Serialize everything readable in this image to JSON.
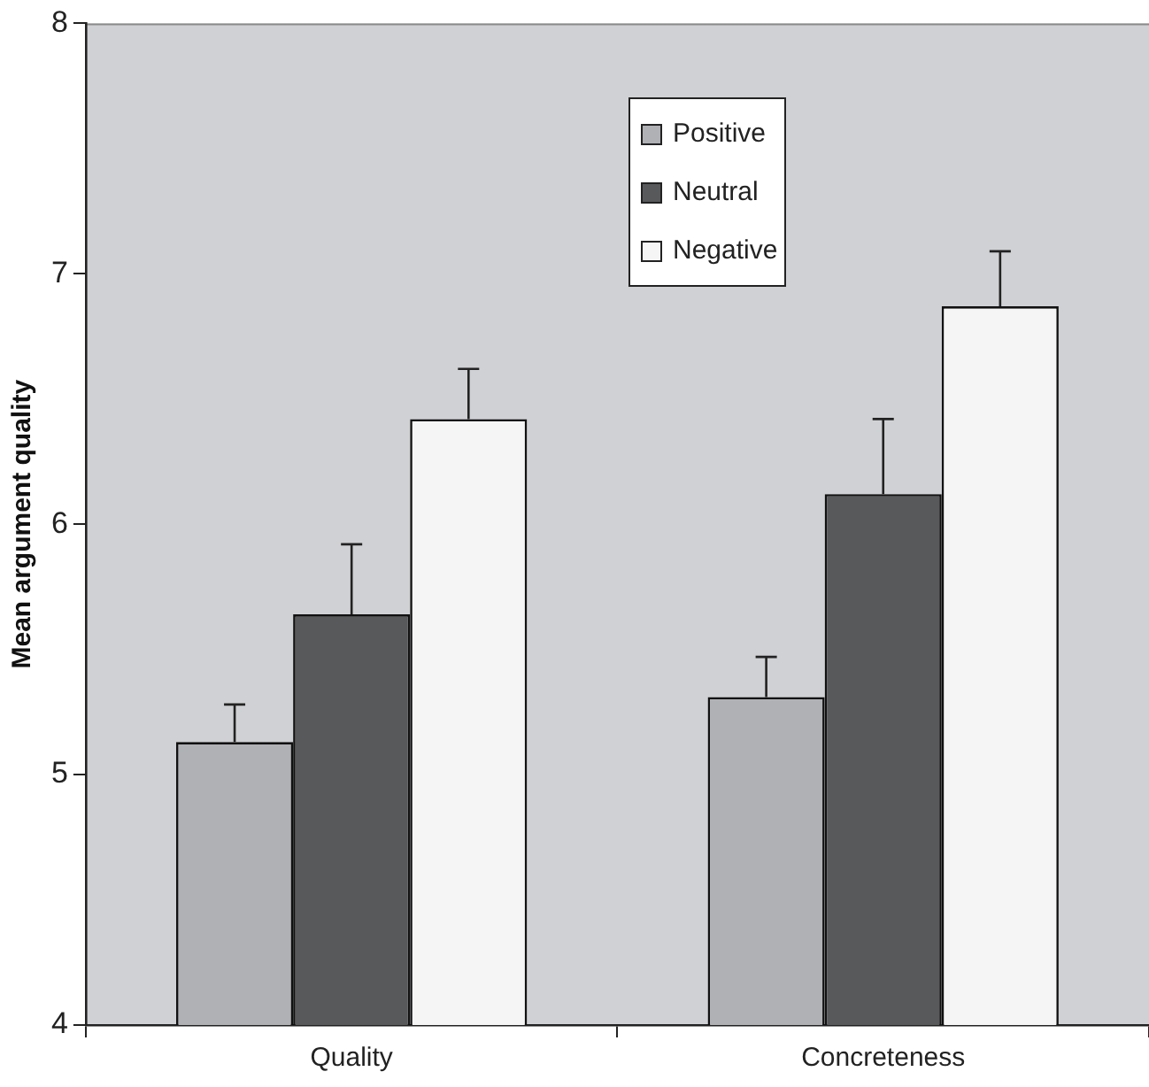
{
  "chart_data": {
    "type": "bar",
    "ylabel": "Mean argument quality",
    "categories": [
      "Quality",
      "Concreteness"
    ],
    "series": [
      {
        "name": "Positive",
        "color": "#b0b1b5",
        "values": [
          5.13,
          5.31
        ],
        "errors": [
          [
            5.13,
            5.28
          ],
          [
            5.31,
            5.47
          ]
        ]
      },
      {
        "name": "Neutral",
        "color": "#58595b",
        "values": [
          5.64,
          6.12
        ],
        "errors": [
          [
            5.64,
            5.92
          ],
          [
            6.12,
            6.42
          ]
        ]
      },
      {
        "name": "Negative",
        "color": "#f5f5f5",
        "values": [
          6.42,
          6.87
        ],
        "errors": [
          [
            6.42,
            6.62
          ],
          [
            6.87,
            7.09
          ]
        ]
      }
    ],
    "ylim": [
      4,
      8
    ],
    "yticks": [
      4,
      5,
      6,
      7,
      8
    ],
    "grid": false,
    "legend": "top"
  }
}
